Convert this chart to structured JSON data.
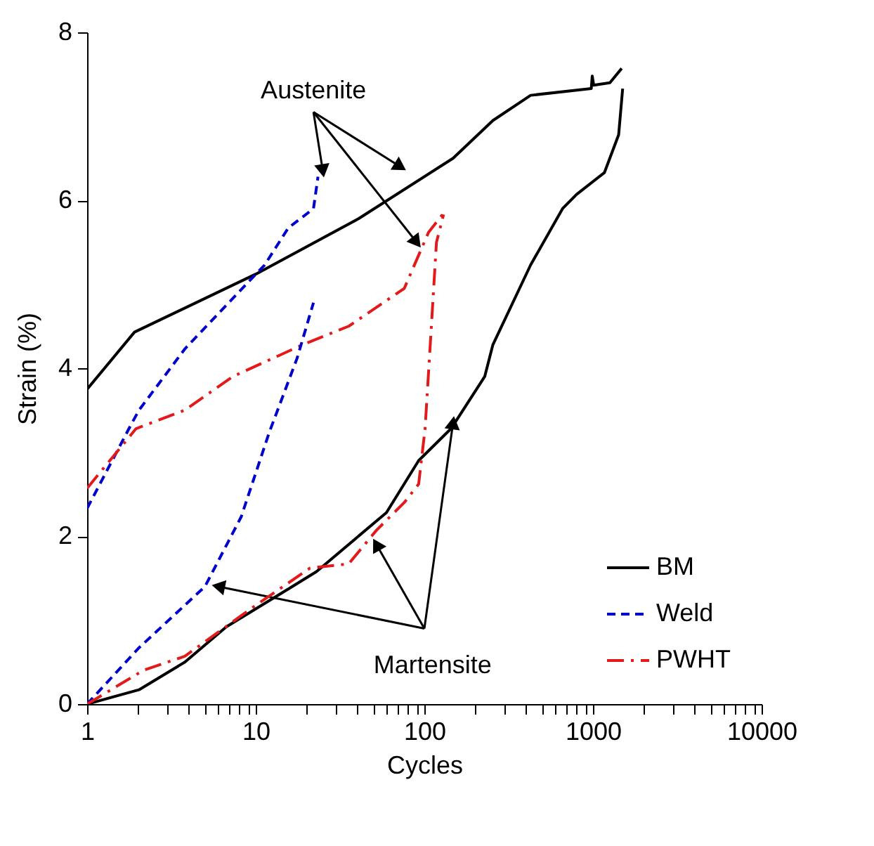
{
  "chart_data": {
    "type": "line",
    "xlabel": "Cycles",
    "ylabel": "Strain (%)",
    "log": "x",
    "xlim": [
      1,
      10000
    ],
    "ylim": [
      0,
      8
    ],
    "xticks": [
      1,
      {
        "value": 2,
        "label": null
      },
      {
        "value": 3,
        "label": null
      },
      {
        "value": 4,
        "label": null
      },
      {
        "value": 5,
        "label": null
      },
      {
        "value": 6,
        "label": null
      },
      {
        "value": 7,
        "label": null
      },
      {
        "value": 8,
        "label": null
      },
      {
        "value": 9,
        "label": null
      },
      10,
      {
        "value": 20,
        "label": null
      },
      {
        "value": 30,
        "label": null
      },
      {
        "value": 40,
        "label": null
      },
      {
        "value": 50,
        "label": null
      },
      {
        "value": 60,
        "label": null
      },
      {
        "value": 70,
        "label": null
      },
      {
        "value": 80,
        "label": null
      },
      {
        "value": 90,
        "label": null
      },
      100,
      {
        "value": 200,
        "label": null
      },
      {
        "value": 300,
        "label": null
      },
      {
        "value": 400,
        "label": null
      },
      {
        "value": 500,
        "label": null
      },
      {
        "value": 600,
        "label": null
      },
      {
        "value": 700,
        "label": null
      },
      {
        "value": 800,
        "label": null
      },
      {
        "value": 900,
        "label": null
      },
      1000,
      {
        "value": 2000,
        "label": null
      },
      {
        "value": 3000,
        "label": null
      },
      {
        "value": 4000,
        "label": null
      },
      {
        "value": 5000,
        "label": null
      },
      {
        "value": 6000,
        "label": null
      },
      {
        "value": 7000,
        "label": null
      },
      {
        "value": 8000,
        "label": null
      },
      {
        "value": 9000,
        "label": null
      },
      10000
    ],
    "yticks": [
      0,
      2,
      4,
      6,
      8
    ],
    "grid": false,
    "legend": "bottom right",
    "series": [
      {
        "name": "BM",
        "color": "#000000",
        "line_style": "solid",
        "x": [
          1,
          1.91,
          10,
          40.7,
          148,
          255,
          427,
          977,
          990,
          1010,
          1260,
          1480
        ],
        "values": [
          3.75,
          4.43,
          5.12,
          5.78,
          6.5,
          6.95,
          7.25,
          7.33,
          7.48,
          7.37,
          7.4,
          7.57
        ]
      },
      {
        "name": "Weld",
        "color": "#0000cc",
        "line_style": "dashed",
        "x": [
          1,
          1.77,
          2.03,
          3.8,
          11.3,
          15.6,
          22,
          23.4
        ],
        "values": [
          2.33,
          3.28,
          3.5,
          4.23,
          5.23,
          5.67,
          5.9,
          6.28
        ]
      },
      {
        "name": "PWHT",
        "color": "#e31a1c",
        "line_style": "dashdot",
        "x": [
          1,
          1.95,
          3.8,
          7.3,
          19,
          35.6,
          76,
          106,
          128
        ],
        "values": [
          2.57,
          3.28,
          3.5,
          3.9,
          4.28,
          4.5,
          4.95,
          5.62,
          5.83
        ]
      },
      {
        "color": "#000000",
        "line_style": "solid",
        "x": [
          1,
          2.03,
          3.8,
          6.7,
          15.6,
          23,
          59.6,
          92.5,
          144,
          228,
          255,
          427,
          660,
          800,
          1170,
          1420,
          1500
        ],
        "values": [
          0,
          0.17,
          0.5,
          0.92,
          1.37,
          1.58,
          2.28,
          2.9,
          3.28,
          3.9,
          4.28,
          5.23,
          5.9,
          6.07,
          6.33,
          6.78,
          7.33
        ]
      },
      {
        "color": "#0000cc",
        "line_style": "dashed",
        "x": [
          1,
          2.03,
          5,
          8.2,
          12,
          17.6,
          22
        ],
        "values": [
          0,
          0.67,
          1.4,
          2.23,
          3.23,
          4.12,
          4.78
        ]
      },
      {
        "color": "#e31a1c",
        "line_style": "dashdot",
        "x": [
          1,
          2.15,
          3.8,
          9.9,
          21,
          35.6,
          52,
          76,
          92.5,
          101,
          108,
          118,
          130
        ],
        "values": [
          0,
          0.4,
          0.57,
          1.17,
          1.62,
          1.67,
          2.07,
          2.4,
          2.62,
          3.28,
          4.23,
          5.5,
          5.83
        ]
      }
    ],
    "annotations": [
      {
        "text": "Austenite",
        "x": 25,
        "y": 6.35
      },
      {
        "text": "Martensite",
        "x": 148,
        "y": 3.35
      }
    ]
  }
}
